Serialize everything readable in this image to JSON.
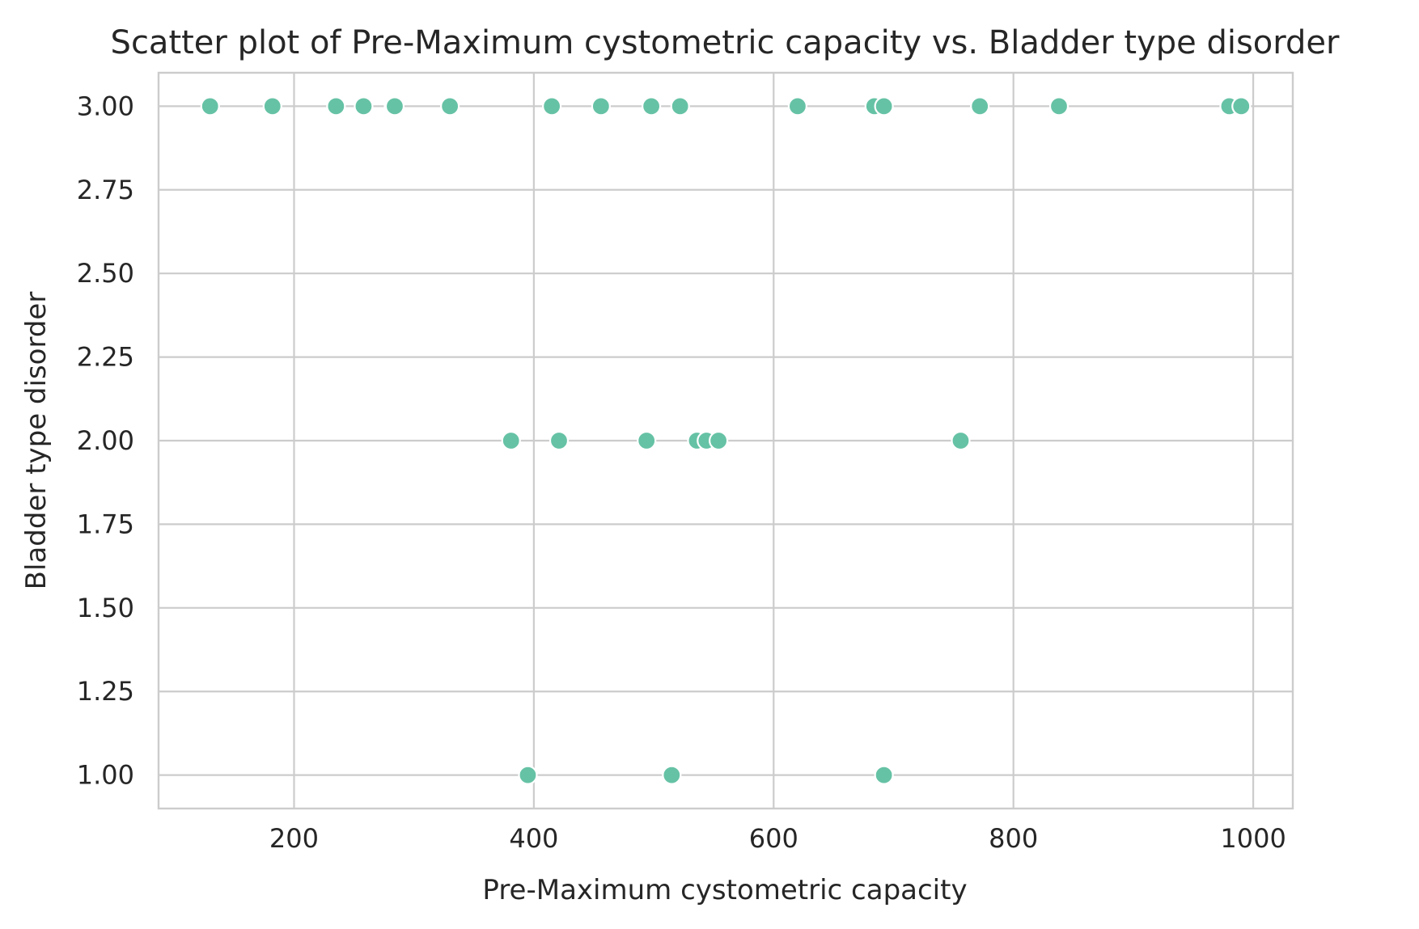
{
  "chart_data": {
    "type": "scatter",
    "title": "Scatter plot of Pre-Maximum cystometric capacity vs. Bladder type disorder",
    "xlabel": "Pre-Maximum cystometric capacity",
    "ylabel": "Bladder type disorder",
    "xlim": [
      87,
      1033
    ],
    "ylim": [
      0.9,
      3.1
    ],
    "xticks": [
      200,
      400,
      600,
      800,
      1000
    ],
    "xtick_labels": [
      "200",
      "400",
      "600",
      "800",
      "1000"
    ],
    "yticks": [
      1.0,
      1.25,
      1.5,
      1.75,
      2.0,
      2.25,
      2.5,
      2.75,
      3.0
    ],
    "ytick_labels": [
      "1.00",
      "1.25",
      "1.50",
      "1.75",
      "2.00",
      "2.25",
      "2.50",
      "2.75",
      "3.00"
    ],
    "grid": true,
    "point_color": "#66c2a5",
    "points": [
      {
        "x": 130,
        "y": 3
      },
      {
        "x": 182,
        "y": 3
      },
      {
        "x": 235,
        "y": 3
      },
      {
        "x": 258,
        "y": 3
      },
      {
        "x": 283,
        "y": 3
      },
      {
        "x": 284,
        "y": 3
      },
      {
        "x": 330,
        "y": 3
      },
      {
        "x": 415,
        "y": 3
      },
      {
        "x": 456,
        "y": 3
      },
      {
        "x": 498,
        "y": 3
      },
      {
        "x": 522,
        "y": 3
      },
      {
        "x": 620,
        "y": 3
      },
      {
        "x": 684,
        "y": 3
      },
      {
        "x": 692,
        "y": 3
      },
      {
        "x": 772,
        "y": 3
      },
      {
        "x": 838,
        "y": 3
      },
      {
        "x": 980,
        "y": 3
      },
      {
        "x": 990,
        "y": 3
      },
      {
        "x": 381,
        "y": 2
      },
      {
        "x": 421,
        "y": 2
      },
      {
        "x": 494,
        "y": 2
      },
      {
        "x": 536,
        "y": 2
      },
      {
        "x": 544,
        "y": 2
      },
      {
        "x": 554,
        "y": 2
      },
      {
        "x": 756,
        "y": 2
      },
      {
        "x": 395,
        "y": 1
      },
      {
        "x": 515,
        "y": 1
      },
      {
        "x": 692,
        "y": 1
      }
    ]
  }
}
